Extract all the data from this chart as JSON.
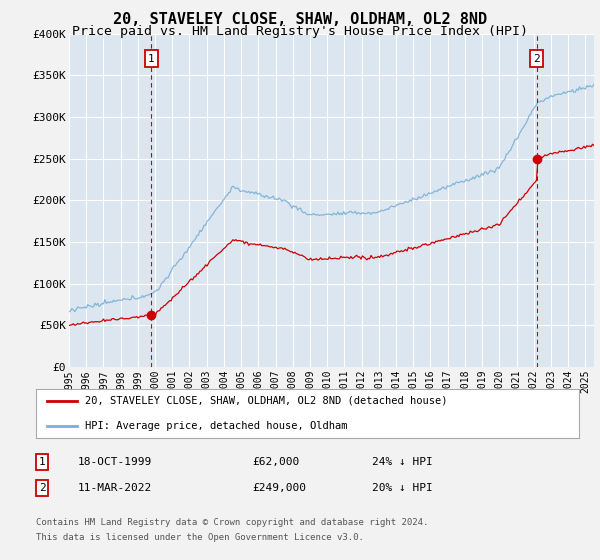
{
  "title": "20, STAVELEY CLOSE, SHAW, OLDHAM, OL2 8ND",
  "subtitle": "Price paid vs. HM Land Registry's House Price Index (HPI)",
  "title_fontsize": 11,
  "subtitle_fontsize": 9.5,
  "ylim": [
    0,
    400000
  ],
  "yticks": [
    0,
    50000,
    100000,
    150000,
    200000,
    250000,
    300000,
    350000,
    400000
  ],
  "ytick_labels": [
    "£0",
    "£50K",
    "£100K",
    "£150K",
    "£200K",
    "£250K",
    "£300K",
    "£350K",
    "£400K"
  ],
  "fig_bg_color": "#f2f2f2",
  "plot_bg_color": "#dce6f1",
  "grid_color": "#ffffff",
  "red_color": "#cc0000",
  "blue_color": "#7ab0d4",
  "marker1_date": 1999.79,
  "marker1_value": 62000,
  "marker2_date": 2022.17,
  "marker2_value": 249000,
  "legend_entry1": "20, STAVELEY CLOSE, SHAW, OLDHAM, OL2 8ND (detached house)",
  "legend_entry2": "HPI: Average price, detached house, Oldham",
  "table_row1": [
    "1",
    "18-OCT-1999",
    "£62,000",
    "24% ↓ HPI"
  ],
  "table_row2": [
    "2",
    "11-MAR-2022",
    "£249,000",
    "20% ↓ HPI"
  ],
  "footnote1": "Contains HM Land Registry data © Crown copyright and database right 2024.",
  "footnote2": "This data is licensed under the Open Government Licence v3.0.",
  "xmin": 1995.0,
  "xmax": 2025.5
}
